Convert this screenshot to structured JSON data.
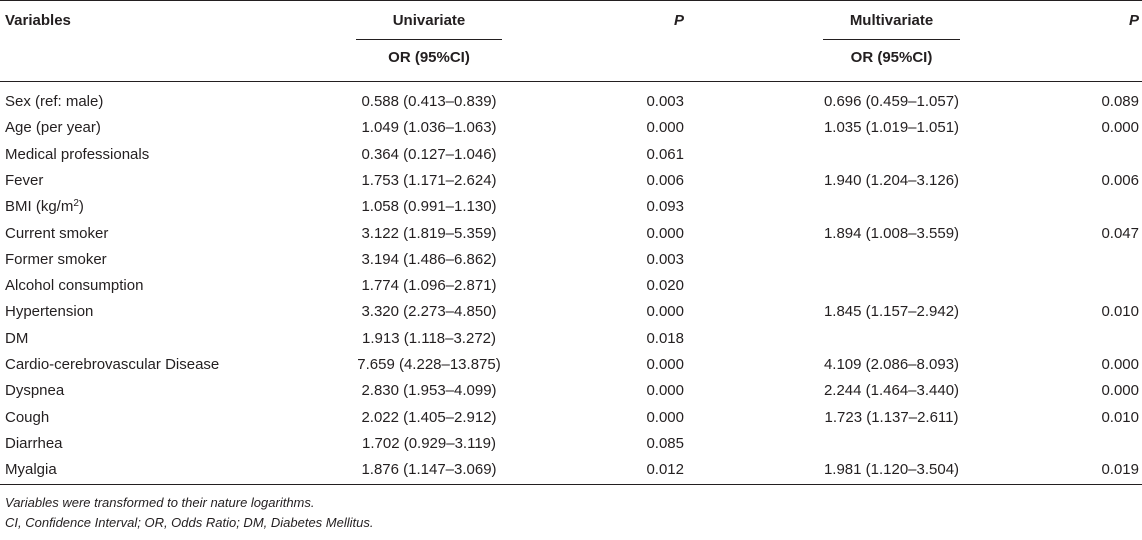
{
  "header": {
    "variables": "Variables",
    "univariate": "Univariate",
    "p_uni": "P",
    "multivariate": "Multivariate",
    "p_multi": "P",
    "or_uni": "OR (95%CI)",
    "or_multi": "OR (95%CI)"
  },
  "rows": [
    {
      "variable": "Sex (ref: male)",
      "or_uni": "0.588 (0.413–0.839)",
      "p_uni": "0.003",
      "or_multi": "0.696 (0.459–1.057)",
      "p_multi": "0.089"
    },
    {
      "variable": "Age (per year)",
      "or_uni": "1.049 (1.036–1.063)",
      "p_uni": "0.000",
      "or_multi": "1.035 (1.019–1.051)",
      "p_multi": "0.000"
    },
    {
      "variable": "Medical professionals",
      "or_uni": "0.364 (0.127–1.046)",
      "p_uni": "0.061",
      "or_multi": "",
      "p_multi": ""
    },
    {
      "variable": "Fever",
      "or_uni": "1.753 (1.171–2.624)",
      "p_uni": "0.006",
      "or_multi": "1.940 (1.204–3.126)",
      "p_multi": "0.006"
    },
    {
      "variable": "BMI (kg/m",
      "variable_sup": "2",
      "variable_after": ")",
      "or_uni": "1.058 (0.991–1.130)",
      "p_uni": "0.093",
      "or_multi": "",
      "p_multi": ""
    },
    {
      "variable": "Current smoker",
      "or_uni": "3.122 (1.819–5.359)",
      "p_uni": "0.000",
      "or_multi": "1.894 (1.008–3.559)",
      "p_multi": "0.047"
    },
    {
      "variable": "Former smoker",
      "or_uni": "3.194 (1.486–6.862)",
      "p_uni": "0.003",
      "or_multi": "",
      "p_multi": ""
    },
    {
      "variable": "Alcohol consumption",
      "or_uni": "1.774 (1.096–2.871)",
      "p_uni": "0.020",
      "or_multi": "",
      "p_multi": ""
    },
    {
      "variable": "Hypertension",
      "or_uni": "3.320 (2.273–4.850)",
      "p_uni": "0.000",
      "or_multi": "1.845 (1.157–2.942)",
      "p_multi": "0.010"
    },
    {
      "variable": "DM",
      "or_uni": "1.913 (1.118–3.272)",
      "p_uni": "0.018",
      "or_multi": "",
      "p_multi": ""
    },
    {
      "variable": "Cardio-cerebrovascular Disease",
      "or_uni": "7.659 (4.228–13.875)",
      "p_uni": "0.000",
      "or_multi": "4.109 (2.086–8.093)",
      "p_multi": "0.000"
    },
    {
      "variable": "Dyspnea",
      "or_uni": "2.830 (1.953–4.099)",
      "p_uni": "0.000",
      "or_multi": "2.244 (1.464–3.440)",
      "p_multi": "0.000"
    },
    {
      "variable": "Cough",
      "or_uni": "2.022 (1.405–2.912)",
      "p_uni": "0.000",
      "or_multi": "1.723 (1.137–2.611)",
      "p_multi": "0.010"
    },
    {
      "variable": "Diarrhea",
      "or_uni": "1.702 (0.929–3.119)",
      "p_uni": "0.085",
      "or_multi": "",
      "p_multi": ""
    },
    {
      "variable": "Myalgia",
      "or_uni": "1.876 (1.147–3.069)",
      "p_uni": "0.012",
      "or_multi": "1.981 (1.120–3.504)",
      "p_multi": "0.019"
    }
  ],
  "footnotes": [
    "Variables were transformed to their nature logarithms.",
    "CI, Confidence Interval; OR, Odds Ratio; DM, Diabetes Mellitus."
  ]
}
